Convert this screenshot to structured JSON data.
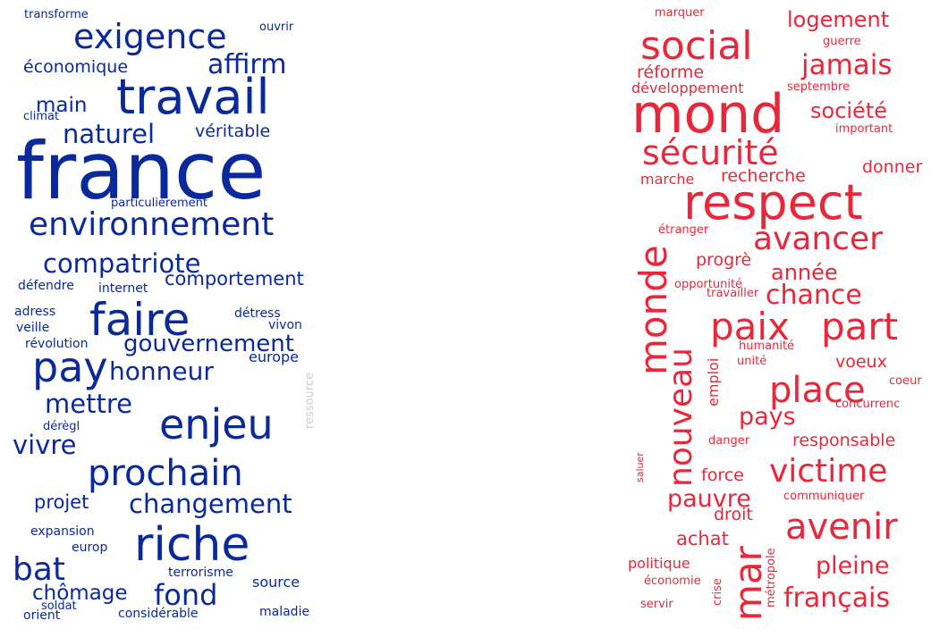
{
  "clouds": [
    {
      "color": "#0a2a9c",
      "words": [
        "transforme",
        "ouvrir",
        "exigence",
        "affirm",
        "économique",
        "travail",
        "main",
        "climat",
        "naturel",
        "véritable",
        "france",
        "particulièrement",
        "environnement",
        "compatriote",
        "défendre",
        "internet",
        "comportement",
        "adress",
        "faire",
        "détress",
        "veille",
        "vivon",
        "révolution",
        "gouvernement",
        "pay",
        "honneur",
        "europe",
        "ressource",
        "mettre",
        "enjeu",
        "dérègl",
        "vivre",
        "prochain",
        "projet",
        "changement",
        "expansion",
        "europ",
        "riche",
        "bat",
        "terrorisme",
        "source",
        "chômage",
        "fond",
        "soldat",
        "orient",
        "considérable",
        "maladie"
      ]
    },
    {
      "color": "#e8283a",
      "words": [
        "marquer",
        "logement",
        "social",
        "guerre",
        "jamais",
        "réforme",
        "développement",
        "septembre",
        "mond",
        "société",
        "important",
        "sécurité",
        "recherche",
        "donner",
        "marche",
        "respect",
        "étranger",
        "avancer",
        "monde",
        "progrè",
        "année",
        "opportunité",
        "travailler",
        "chance",
        "paix",
        "part",
        "nouveau",
        "humanité",
        "emploi",
        "unité",
        "voeux",
        "place",
        "coeur",
        "pays",
        "concurrenc",
        "responsable",
        "danger",
        "saluer",
        "victime",
        "force",
        "pauvre",
        "communiquer",
        "avenir",
        "droit",
        "achat",
        "métropole",
        "pleine",
        "politique",
        "mar",
        "crise",
        "économie",
        "français",
        "servir"
      ]
    }
  ]
}
